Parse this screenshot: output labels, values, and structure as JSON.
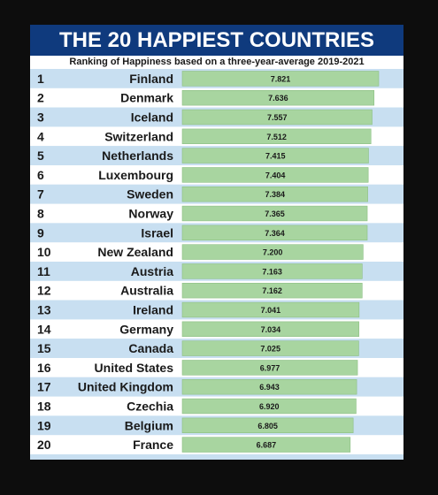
{
  "header": {
    "title": "THE 20 HAPPIEST COUNTRIES",
    "subtitle": "Ranking of Happiness based on a three-year-average 2019-2021"
  },
  "colors": {
    "title_band": "#0f3a7d",
    "background": "#c8dff1",
    "row_alt": "#ffffff",
    "bar_fill": "#a8d5a0",
    "bar_stroke": "#8cbf83",
    "text": "#1a1a1a"
  },
  "chart_data": {
    "type": "bar",
    "orientation": "horizontal",
    "title": "THE 20 HAPPIEST COUNTRIES",
    "subtitle": "Ranking of Happiness based on a three-year-average 2019-2021",
    "ranks": [
      "1",
      "2",
      "3",
      "4",
      "5",
      "6",
      "7",
      "8",
      "9",
      "10",
      "11",
      "12",
      "13",
      "14",
      "15",
      "16",
      "17",
      "18",
      "19",
      "20"
    ],
    "categories": [
      "Finland",
      "Denmark",
      "Iceland",
      "Switzerland",
      "Netherlands",
      "Luxembourg",
      "Sweden",
      "Norway",
      "Israel",
      "New Zealand",
      "Austria",
      "Australia",
      "Ireland",
      "Germany",
      "Canada",
      "United States",
      "United Kingdom",
      "Czechia",
      "Belgium",
      "France"
    ],
    "values": [
      7.821,
      7.636,
      7.557,
      7.512,
      7.415,
      7.404,
      7.384,
      7.365,
      7.364,
      7.2,
      7.163,
      7.162,
      7.041,
      7.034,
      7.025,
      6.977,
      6.943,
      6.92,
      6.805,
      6.687
    ],
    "value_labels": [
      "7.821",
      "7.636",
      "7.557",
      "7.512",
      "7.415",
      "7.404",
      "7.384",
      "7.365",
      "7.364",
      "7.200",
      "7.163",
      "7.162",
      "7.041",
      "7.034",
      "7.025",
      "6.977",
      "6.943",
      "6.920",
      "6.805",
      "6.687"
    ],
    "xlim": [
      0,
      7.821
    ],
    "grid": false,
    "legend": "none"
  }
}
